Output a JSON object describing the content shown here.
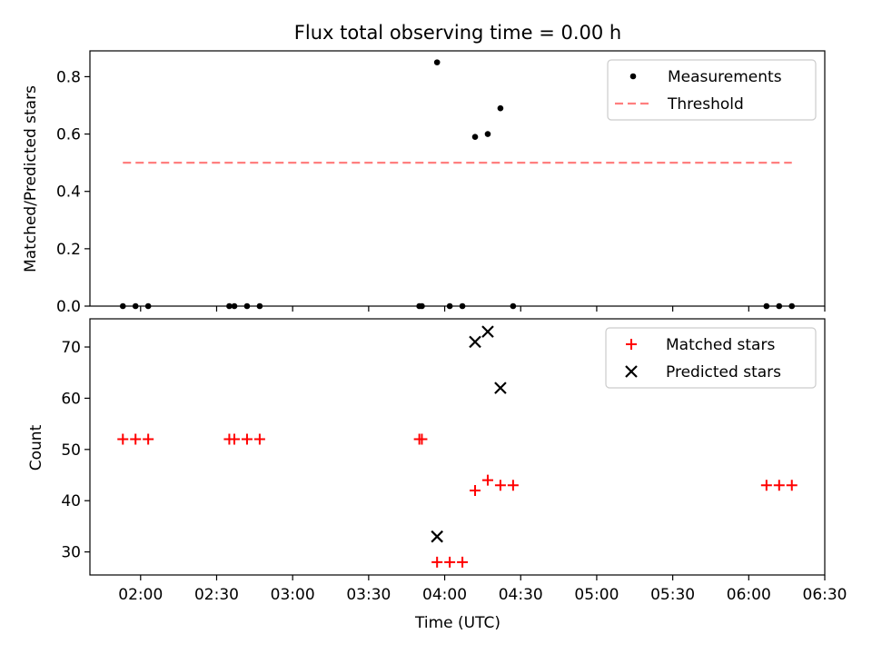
{
  "chart_data": {
    "type": "scatter",
    "title": "Flux total observing time = 0.00 h",
    "xlabel": "Time (UTC)",
    "x_ticks": [
      "02:00",
      "02:30",
      "03:00",
      "03:30",
      "04:00",
      "04:30",
      "05:00",
      "05:30",
      "06:00",
      "06:30"
    ],
    "x_range": [
      "01:40",
      "06:30"
    ],
    "panels": [
      {
        "ylabel": "Matched/Predicted stars",
        "ylim": [
          0,
          0.89
        ],
        "y_ticks": [
          "0.0",
          "0.2",
          "0.4",
          "0.6",
          "0.8"
        ],
        "y_tick_values": [
          0,
          0.2,
          0.4,
          0.6,
          0.8
        ],
        "legend_position": "upper right",
        "series": [
          {
            "name": "Measurements",
            "marker": "dot",
            "color": "#000000",
            "points": [
              {
                "x": "01:53",
                "y": 0
              },
              {
                "x": "01:58",
                "y": 0
              },
              {
                "x": "02:03",
                "y": 0
              },
              {
                "x": "02:35",
                "y": 0
              },
              {
                "x": "02:37",
                "y": 0
              },
              {
                "x": "02:42",
                "y": 0
              },
              {
                "x": "02:47",
                "y": 0
              },
              {
                "x": "03:50",
                "y": 0
              },
              {
                "x": "03:51",
                "y": 0
              },
              {
                "x": "03:57",
                "y": 0.85
              },
              {
                "x": "04:02",
                "y": 0
              },
              {
                "x": "04:07",
                "y": 0
              },
              {
                "x": "04:12",
                "y": 0.59
              },
              {
                "x": "04:17",
                "y": 0.6
              },
              {
                "x": "04:22",
                "y": 0.69
              },
              {
                "x": "04:27",
                "y": 0
              },
              {
                "x": "06:07",
                "y": 0
              },
              {
                "x": "06:12",
                "y": 0
              },
              {
                "x": "06:17",
                "y": 0
              }
            ]
          },
          {
            "name": "Threshold",
            "marker": "dashed-line",
            "color": "#ff7f7f",
            "points": [
              {
                "x": "01:53",
                "y": 0.5
              },
              {
                "x": "06:17",
                "y": 0.5
              }
            ]
          }
        ]
      },
      {
        "ylabel": "Count",
        "ylim": [
          25.5,
          75.5
        ],
        "y_ticks": [
          "30",
          "40",
          "50",
          "60",
          "70"
        ],
        "y_tick_values": [
          30,
          40,
          50,
          60,
          70
        ],
        "legend_position": "upper right",
        "series": [
          {
            "name": "Matched stars",
            "marker": "plus",
            "color": "#ff0000",
            "points": [
              {
                "x": "01:53",
                "y": 52
              },
              {
                "x": "01:58",
                "y": 52
              },
              {
                "x": "02:03",
                "y": 52
              },
              {
                "x": "02:35",
                "y": 52
              },
              {
                "x": "02:37",
                "y": 52
              },
              {
                "x": "02:42",
                "y": 52
              },
              {
                "x": "02:47",
                "y": 52
              },
              {
                "x": "03:50",
                "y": 52
              },
              {
                "x": "03:51",
                "y": 52
              },
              {
                "x": "03:57",
                "y": 28
              },
              {
                "x": "04:02",
                "y": 28
              },
              {
                "x": "04:07",
                "y": 28
              },
              {
                "x": "04:12",
                "y": 42
              },
              {
                "x": "04:17",
                "y": 44
              },
              {
                "x": "04:22",
                "y": 43
              },
              {
                "x": "04:27",
                "y": 43
              },
              {
                "x": "06:07",
                "y": 43
              },
              {
                "x": "06:12",
                "y": 43
              },
              {
                "x": "06:17",
                "y": 43
              }
            ]
          },
          {
            "name": "Predicted stars",
            "marker": "x",
            "color": "#000000",
            "points": [
              {
                "x": "03:57",
                "y": 33
              },
              {
                "x": "04:12",
                "y": 71
              },
              {
                "x": "04:17",
                "y": 73
              },
              {
                "x": "04:22",
                "y": 62
              }
            ]
          }
        ]
      }
    ]
  }
}
